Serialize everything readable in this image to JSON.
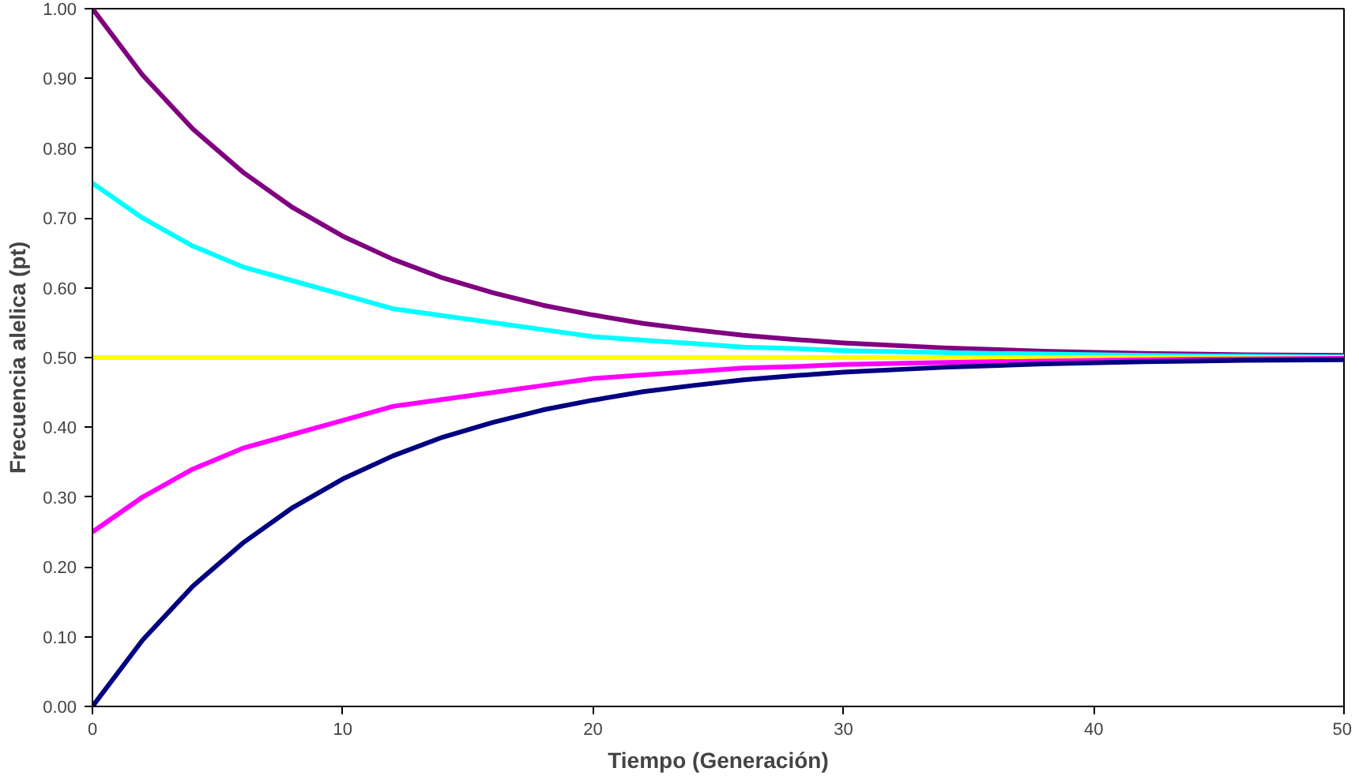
{
  "chart_data": {
    "type": "line",
    "xlabel": "Tiempo (Generación)",
    "ylabel": "Frecuencia alelica (pt)",
    "x": [
      0,
      2,
      4,
      6,
      8,
      10,
      12,
      14,
      16,
      18,
      20,
      22,
      24,
      26,
      28,
      30,
      34,
      38,
      42,
      46,
      50
    ],
    "series": [
      {
        "color": "#800080",
        "values": [
          1.0,
          0.905,
          0.828,
          0.766,
          0.715,
          0.674,
          0.641,
          0.614,
          0.593,
          0.575,
          0.561,
          0.549,
          0.54,
          0.532,
          0.526,
          0.521,
          0.514,
          0.509,
          0.506,
          0.504,
          0.503
        ]
      },
      {
        "color": "#00ffff",
        "values": [
          0.75,
          0.7,
          0.66,
          0.63,
          0.61,
          0.59,
          0.57,
          0.56,
          0.55,
          0.54,
          0.53,
          0.525,
          0.52,
          0.515,
          0.513,
          0.51,
          0.507,
          0.505,
          0.503,
          0.502,
          0.501
        ]
      },
      {
        "color": "#ffff00",
        "values": [
          0.5,
          0.5,
          0.5,
          0.5,
          0.5,
          0.5,
          0.5,
          0.5,
          0.5,
          0.5,
          0.5,
          0.5,
          0.5,
          0.5,
          0.5,
          0.5,
          0.5,
          0.5,
          0.5,
          0.5,
          0.5
        ]
      },
      {
        "color": "#ff00ff",
        "values": [
          0.25,
          0.3,
          0.34,
          0.37,
          0.39,
          0.41,
          0.43,
          0.44,
          0.45,
          0.46,
          0.47,
          0.475,
          0.48,
          0.485,
          0.487,
          0.49,
          0.493,
          0.495,
          0.497,
          0.498,
          0.499
        ]
      },
      {
        "color": "#000080",
        "values": [
          0.0,
          0.095,
          0.172,
          0.234,
          0.285,
          0.326,
          0.359,
          0.386,
          0.407,
          0.425,
          0.439,
          0.451,
          0.46,
          0.468,
          0.474,
          0.479,
          0.486,
          0.491,
          0.494,
          0.496,
          0.497
        ]
      }
    ],
    "xlim": [
      0,
      50
    ],
    "xticks": [
      0,
      10,
      20,
      30,
      40,
      50
    ],
    "ylim": [
      0,
      1
    ],
    "yticks": [
      {
        "value": 0,
        "label": "0.00"
      },
      {
        "value": 0.1,
        "label": "0.10"
      },
      {
        "value": 0.2,
        "label": "0.20"
      },
      {
        "value": 0.3,
        "label": "0.30"
      },
      {
        "value": 0.4,
        "label": "0.40"
      },
      {
        "value": 0.5,
        "label": "0.50"
      },
      {
        "value": 0.6,
        "label": "0.60"
      },
      {
        "value": 0.7,
        "label": "0.70"
      },
      {
        "value": 0.8,
        "label": "0.80"
      },
      {
        "value": 0.9,
        "label": "0.90"
      },
      {
        "value": 1.0,
        "label": "1.00"
      }
    ],
    "grid": false
  }
}
